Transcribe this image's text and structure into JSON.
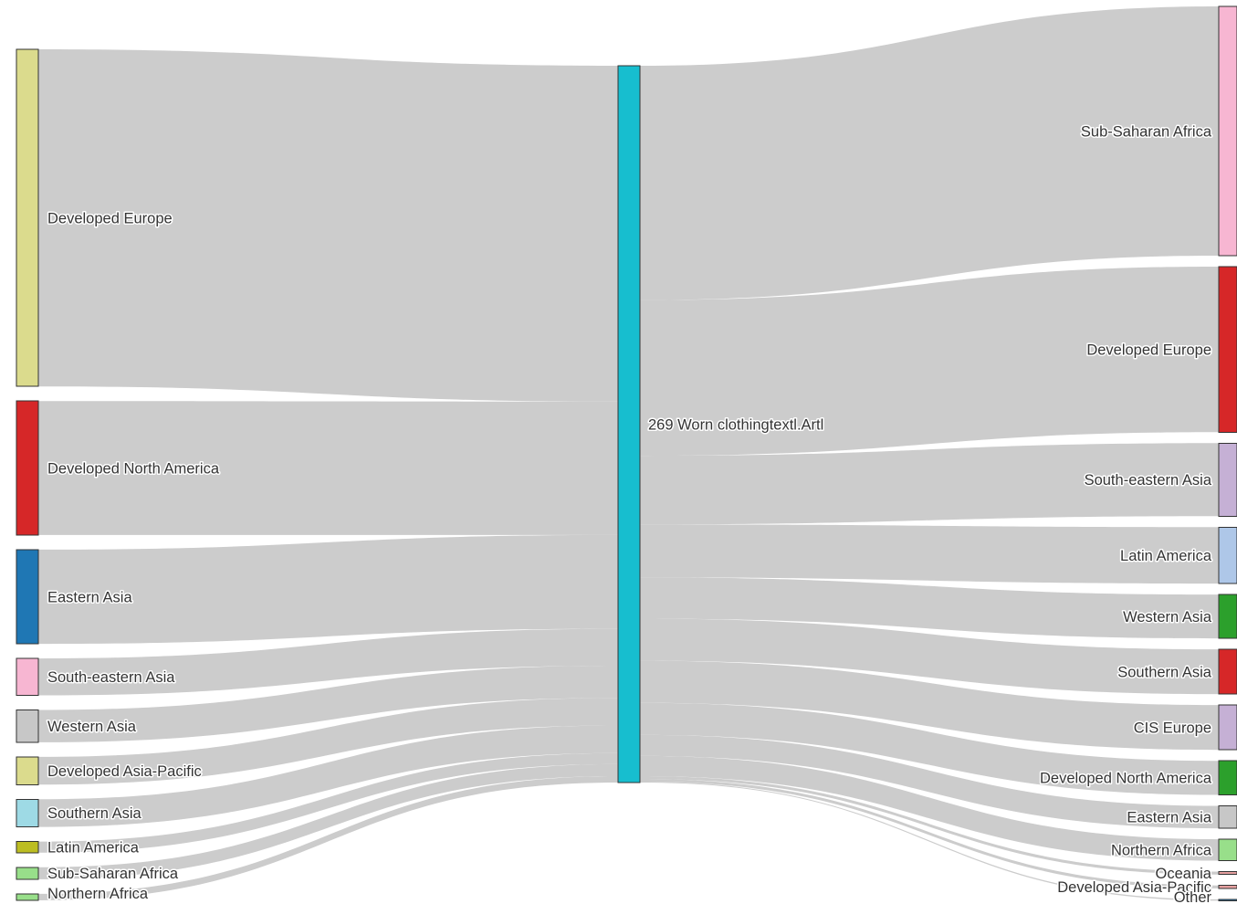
{
  "chart_data": {
    "type": "sankey",
    "center": {
      "label": "269 Worn clothingtextl.Artl",
      "color": "#17becf"
    },
    "sources": [
      {
        "label": "Developed Europe",
        "value": 36.5,
        "color": "#dbdb8d"
      },
      {
        "label": "Developed North America",
        "value": 14.5,
        "color": "#d62728"
      },
      {
        "label": "Eastern Asia",
        "value": 10.2,
        "color": "#1f77b4"
      },
      {
        "label": "South-eastern Asia",
        "value": 4.0,
        "color": "#f7b6d2"
      },
      {
        "label": "Western Asia",
        "value": 3.5,
        "color": "#c7c7c7"
      },
      {
        "label": "Developed Asia-Pacific",
        "value": 3.0,
        "color": "#dbdb8d"
      },
      {
        "label": "Southern Asia",
        "value": 3.0,
        "color": "#9edae5"
      },
      {
        "label": "Latin America",
        "value": 1.2,
        "color": "#bcbd22"
      },
      {
        "label": "Sub-Saharan Africa",
        "value": 1.3,
        "color": "#98df8a"
      },
      {
        "label": "Northern Africa",
        "value": 0.7,
        "color": "#98df8a"
      }
    ],
    "targets": [
      {
        "label": "Sub-Saharan Africa",
        "value": 25.6,
        "color": "#f7b6d2"
      },
      {
        "label": "Developed Europe",
        "value": 17.0,
        "color": "#d62728"
      },
      {
        "label": "South-eastern Asia",
        "value": 7.5,
        "color": "#c5b0d5"
      },
      {
        "label": "Latin America",
        "value": 5.8,
        "color": "#aec7e8"
      },
      {
        "label": "Western Asia",
        "value": 4.5,
        "color": "#2ca02c"
      },
      {
        "label": "Southern Asia",
        "value": 4.6,
        "color": "#d62728"
      },
      {
        "label": "CIS Europe",
        "value": 4.6,
        "color": "#c5b0d5"
      },
      {
        "label": "Developed North America",
        "value": 3.5,
        "color": "#2ca02c"
      },
      {
        "label": "Eastern Asia",
        "value": 2.3,
        "color": "#c7c7c7"
      },
      {
        "label": "Northern Africa",
        "value": 2.2,
        "color": "#98df8a"
      },
      {
        "label": "Oceania",
        "value": 0.3,
        "color": "#e6a0a0"
      },
      {
        "label": "Developed Asia-Pacific",
        "value": 0.3,
        "color": "#e6a0a0"
      },
      {
        "label": "Other",
        "value": 0.1,
        "color": "#1f77b4"
      }
    ]
  }
}
